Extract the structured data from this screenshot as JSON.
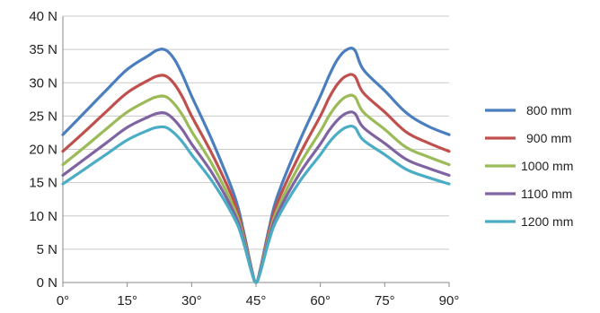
{
  "chart_data": {
    "type": "line",
    "title": "",
    "xlabel": "",
    "ylabel": "",
    "x_unit": "°",
    "y_unit": " N",
    "xlim": [
      0,
      90
    ],
    "ylim": [
      0,
      40
    ],
    "x_ticks": [
      0,
      15,
      30,
      45,
      60,
      75,
      90
    ],
    "y_ticks": [
      0,
      5,
      10,
      15,
      20,
      25,
      30,
      35,
      40
    ],
    "x_tick_labels": [
      "0°",
      "15°",
      "30°",
      "45°",
      "60°",
      "75°",
      "90°"
    ],
    "y_tick_labels": [
      "0 N",
      "5 N",
      "10 N",
      "15 N",
      "20 N",
      "25 N",
      "30 N",
      "35 N",
      "40 N"
    ],
    "grid": "horizontal",
    "legend_position": "right",
    "x": [
      0,
      5,
      10,
      15,
      20,
      22,
      24,
      26,
      28,
      30,
      35,
      40,
      42,
      44,
      45,
      46,
      48,
      50,
      55,
      60,
      62,
      64,
      66,
      68,
      70,
      75,
      80,
      85,
      90
    ],
    "series": [
      {
        "name": "800 mm",
        "color": "#4a7ebf",
        "values": [
          22.2,
          25.5,
          28.8,
          32.0,
          34.1,
          34.9,
          34.9,
          33.5,
          31.0,
          28.0,
          21.0,
          13.0,
          8.0,
          2.0,
          0,
          2.0,
          8.0,
          13.0,
          21.0,
          28.0,
          31.0,
          33.5,
          34.9,
          34.9,
          32.0,
          28.8,
          25.5,
          23.5,
          22.2
        ]
      },
      {
        "name": "900 mm",
        "color": "#c0504d",
        "values": [
          19.7,
          22.6,
          25.6,
          28.5,
          30.4,
          31.0,
          31.0,
          29.8,
          27.7,
          25.0,
          19.0,
          12.0,
          7.5,
          1.8,
          0,
          1.8,
          7.5,
          12.0,
          19.0,
          25.0,
          27.7,
          29.8,
          31.0,
          31.0,
          28.5,
          25.6,
          22.6,
          21.0,
          19.7
        ]
      },
      {
        "name": "1000 mm",
        "color": "#9bbb59",
        "values": [
          17.7,
          20.3,
          23.0,
          25.6,
          27.4,
          27.9,
          27.9,
          26.8,
          25.0,
          22.7,
          17.5,
          11.0,
          7.0,
          1.7,
          0,
          1.7,
          7.0,
          11.0,
          17.5,
          22.7,
          25.0,
          26.8,
          27.9,
          27.9,
          25.6,
          23.0,
          20.3,
          18.9,
          17.7
        ]
      },
      {
        "name": "1100 mm",
        "color": "#8064a2",
        "values": [
          16.1,
          18.5,
          20.9,
          23.3,
          24.9,
          25.4,
          25.4,
          24.4,
          22.8,
          20.8,
          16.2,
          10.3,
          6.6,
          1.6,
          0,
          1.6,
          6.6,
          10.3,
          16.2,
          20.8,
          22.8,
          24.4,
          25.4,
          25.4,
          23.3,
          20.9,
          18.5,
          17.2,
          16.1
        ]
      },
      {
        "name": "1200 mm",
        "color": "#4bacc6",
        "values": [
          14.8,
          17.0,
          19.2,
          21.4,
          22.9,
          23.3,
          23.3,
          22.4,
          21.0,
          19.2,
          15.0,
          9.6,
          6.2,
          1.5,
          0,
          1.5,
          6.2,
          9.6,
          15.0,
          19.2,
          21.0,
          22.4,
          23.3,
          23.3,
          21.4,
          19.2,
          17.0,
          15.8,
          14.8
        ]
      }
    ]
  }
}
